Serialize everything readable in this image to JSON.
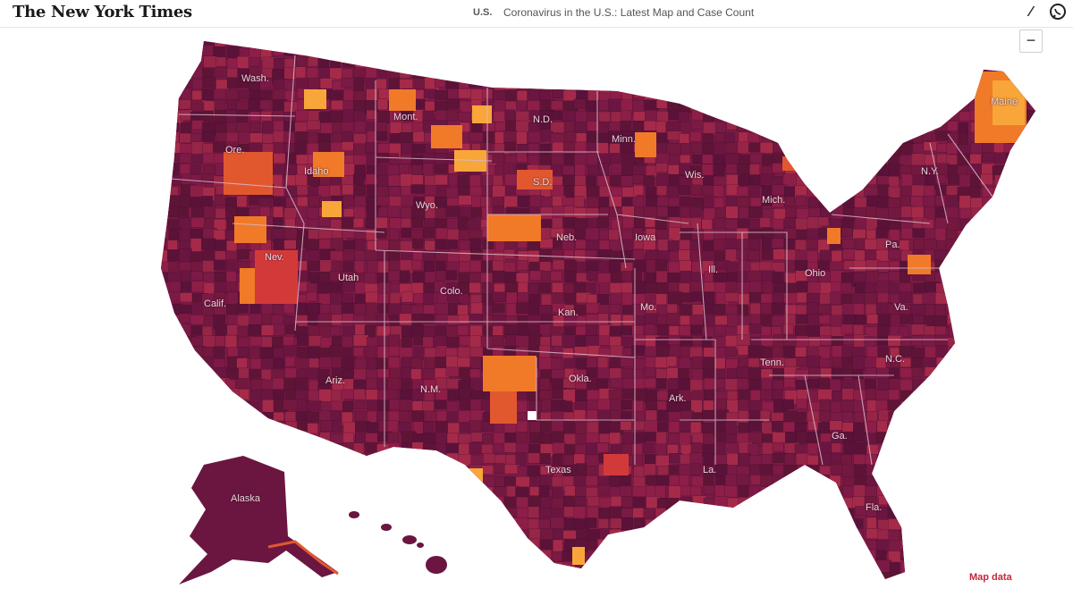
{
  "header": {
    "logo": "The New York Times",
    "section": "U.S.",
    "headline": "Coronavirus in the U.S.: Latest Map and Case Count"
  },
  "icons": {
    "share": "share-icon",
    "whatsapp": "whatsapp-icon"
  },
  "zoom": {
    "out_label": "−"
  },
  "colors": {
    "darkest": "#5a1238",
    "dark": "#7a1a45",
    "mid": "#a52a4a",
    "red": "#d23a3a",
    "orange": "#f07a28",
    "light": "#f8a63a"
  },
  "labels": {
    "wash": "Wash.",
    "ore": "Ore.",
    "idaho": "Idaho",
    "mont": "Mont.",
    "nd": "N.D.",
    "sd": "S.D.",
    "wyo": "Wyo.",
    "nev": "Nev.",
    "utah": "Utah",
    "colo": "Colo.",
    "neb": "Neb.",
    "kan": "Kan.",
    "calif": "Calif.",
    "ariz": "Ariz.",
    "nm": "N.M.",
    "okla": "Okla.",
    "texas": "Texas",
    "mo": "Mo.",
    "ark": "Ark.",
    "la": "La.",
    "tenn": "Tenn.",
    "ga": "Ga.",
    "fla": "Fla.",
    "nc": "N.C.",
    "va": "Va.",
    "pa": "Pa.",
    "ny": "N.Y.",
    "ohio": "Ohio",
    "mich": "Mich.",
    "wis": "Wis.",
    "minn": "Minn.",
    "iowa": "Iowa",
    "ill": "Ill.",
    "maine": "Maine",
    "alaska": "Alaska"
  },
  "credit": "Map data"
}
